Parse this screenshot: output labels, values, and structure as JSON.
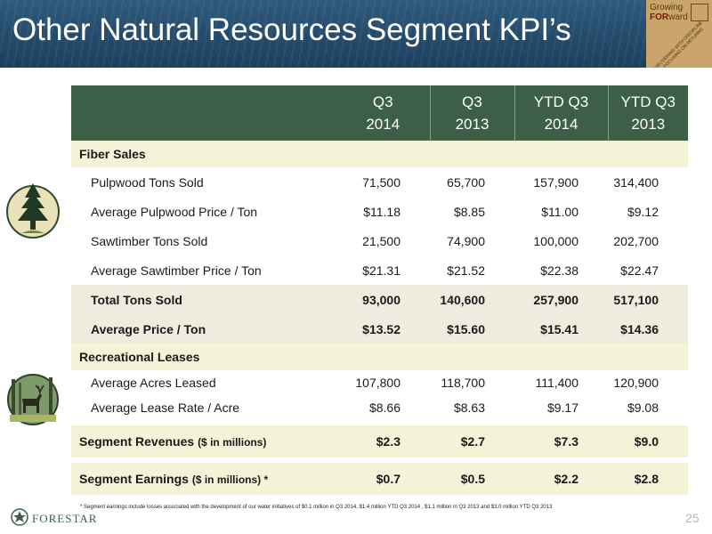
{
  "title": "Other Natural Resources Segment KPI’s",
  "badge": {
    "line1": "Growing",
    "line2a": "FOR",
    "line2b": "ward",
    "tagline": "DELIVERING WITH DISCIPLINE · FOCUSING ON RETURNS"
  },
  "columns": [
    {
      "line1": "Q3",
      "line2": "2014"
    },
    {
      "line1": "Q3",
      "line2": "2013"
    },
    {
      "line1": "YTD Q3",
      "line2": "2014"
    },
    {
      "line1": "YTD Q3",
      "line2": "2013"
    }
  ],
  "fiber": {
    "heading": "Fiber Sales",
    "rows": [
      {
        "label": "Pulpwood Tons Sold",
        "values": [
          "71,500",
          "65,700",
          "157,900",
          "314,400"
        ]
      },
      {
        "label": "Average Pulpwood Price / Ton",
        "values": [
          "$11.18",
          "$8.85",
          "$11.00",
          "$9.12"
        ]
      },
      {
        "label": "Sawtimber Tons Sold",
        "values": [
          "21,500",
          "74,900",
          "100,000",
          "202,700"
        ]
      },
      {
        "label": "Average Sawtimber Price / Ton",
        "values": [
          "$21.31",
          "$21.52",
          "$22.38",
          "$22.47"
        ]
      }
    ],
    "totals": [
      {
        "label": "Total Tons Sold",
        "values": [
          "93,000",
          "140,600",
          "257,900",
          "517,100"
        ]
      },
      {
        "label": "Average Price / Ton",
        "values": [
          "$13.52",
          "$15.60",
          "$15.41",
          "$14.36"
        ]
      }
    ]
  },
  "recreational": {
    "heading": "Recreational Leases",
    "rows": [
      {
        "label": "Average Acres Leased",
        "values": [
          "107,800",
          "118,700",
          "111,400",
          "120,900"
        ]
      },
      {
        "label": "Average Lease Rate / Acre",
        "values": [
          "$8.66",
          "$8.63",
          "$9.17",
          "$9.08"
        ]
      }
    ]
  },
  "segment": {
    "revenues": {
      "label": "Segment Revenues",
      "unit": "($ in millions)",
      "values": [
        "$2.3",
        "$2.7",
        "$7.3",
        "$9.0"
      ]
    },
    "earnings": {
      "label": "Segment Earnings",
      "unit": "($ in millions) *",
      "values": [
        "$0.7",
        "$0.5",
        "$2.2",
        "$2.8"
      ]
    }
  },
  "footnote": "* Segment earnings include losses associated with the development of our water initiatives of $0.1 million in Q3 2014, $1.4 million YTD Q3 2014 , $1.1 million in Q3 2013 and $3.0 million YTD Q3 2013",
  "logo_text": "FORESTAR",
  "page_number": "25",
  "colors": {
    "banner": "#244a6b",
    "header_green": "#3d5f47",
    "section_bg": "#f4f3d8",
    "total_bg": "#edecdf"
  },
  "icons": [
    "pine-tree-icon",
    "deer-icon",
    "forestar-logo-icon"
  ]
}
